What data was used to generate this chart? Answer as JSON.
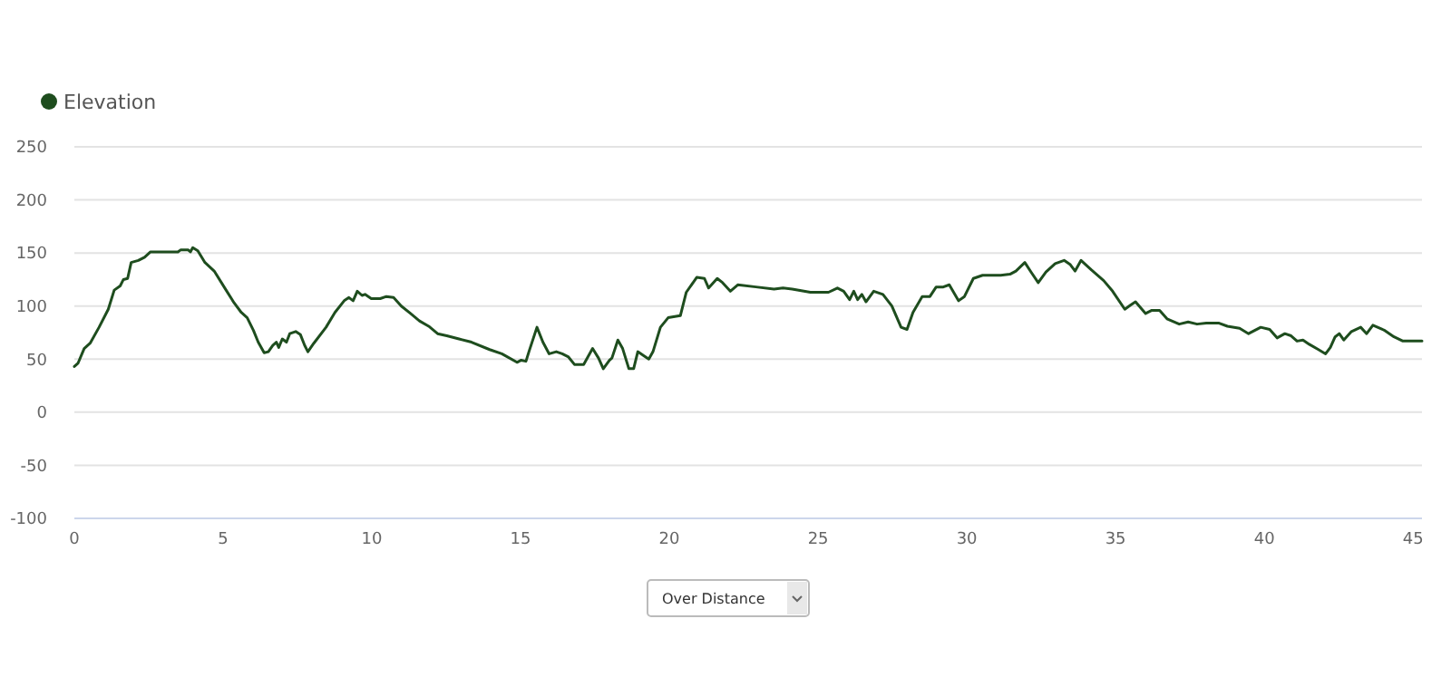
{
  "chart_data": {
    "type": "line",
    "xlim": [
      0,
      45.3
    ],
    "xticks": [
      0,
      5,
      10,
      15,
      20,
      25,
      30,
      35,
      40,
      45
    ],
    "ylim": [
      -100,
      250
    ],
    "yticks": [
      -100,
      -50,
      0,
      50,
      100,
      150,
      200,
      250
    ],
    "grid": "y",
    "legend": "top left",
    "marker": "none",
    "line_style": "solid",
    "annotations": [
      "Over Distance"
    ],
    "series": [
      {
        "name": "Elevation",
        "color": "#1e4d1e",
        "x": [
          0,
          0.12,
          0.33,
          0.53,
          0.83,
          1.14,
          1.34,
          1.54,
          1.65,
          1.79,
          1.91,
          2.15,
          2.36,
          2.56,
          2.76,
          3.48,
          3.58,
          3.82,
          3.9,
          3.98,
          4.15,
          4.39,
          4.7,
          5.1,
          5.37,
          5.61,
          5.81,
          6.02,
          6.18,
          6.38,
          6.52,
          6.67,
          6.79,
          6.87,
          6.99,
          7.13,
          7.24,
          7.44,
          7.6,
          7.74,
          7.85,
          8.05,
          8.46,
          8.76,
          9.07,
          9.23,
          9.37,
          9.51,
          9.67,
          9.77,
          9.98,
          10.28,
          10.49,
          10.73,
          10.99,
          11.3,
          11.6,
          11.91,
          12.21,
          12.52,
          12.93,
          13.35,
          13.96,
          14.37,
          14.88,
          15.02,
          15.18,
          15.28,
          15.55,
          15.75,
          15.96,
          16.2,
          16.4,
          16.61,
          16.81,
          17.12,
          17.42,
          17.62,
          17.78,
          17.99,
          18.07,
          18.27,
          18.43,
          18.64,
          18.8,
          18.94,
          19.15,
          19.31,
          19.45,
          19.7,
          19.96,
          20.37,
          20.57,
          20.92,
          21.18,
          21.32,
          21.61,
          21.79,
          22.05,
          22.3,
          22.91,
          23.52,
          23.82,
          24.13,
          24.74,
          25.35,
          25.65,
          25.86,
          26.06,
          26.2,
          26.33,
          26.47,
          26.61,
          26.87,
          27.18,
          27.48,
          27.79,
          27.99,
          28.19,
          28.5,
          28.76,
          28.97,
          29.21,
          29.41,
          29.72,
          29.92,
          30.22,
          30.53,
          31.14,
          31.45,
          31.65,
          31.95,
          32.16,
          32.4,
          32.66,
          32.97,
          33.27,
          33.48,
          33.64,
          33.84,
          34.19,
          34.6,
          34.9,
          35.31,
          35.51,
          35.67,
          36.01,
          36.22,
          36.48,
          36.73,
          37.14,
          37.44,
          37.74,
          38.05,
          38.46,
          38.76,
          39.17,
          39.47,
          39.88,
          40.18,
          40.43,
          40.69,
          40.9,
          41.1,
          41.3,
          41.51,
          41.82,
          42.06,
          42.22,
          42.38,
          42.52,
          42.67,
          42.93,
          43.24,
          43.44,
          43.65,
          44.05,
          44.36,
          44.66,
          45.3
        ],
        "values": [
          43,
          46,
          60,
          65,
          80,
          97,
          115,
          119,
          125,
          126,
          141,
          143,
          146,
          151,
          151,
          151,
          153,
          153,
          151,
          155,
          152,
          141,
          133,
          115,
          103,
          94,
          89,
          77,
          66,
          56,
          57,
          63,
          66,
          61,
          69,
          66,
          74,
          76,
          73,
          63,
          57,
          65,
          80,
          94,
          105,
          108,
          105,
          114,
          110,
          111,
          107,
          107,
          109,
          108,
          100,
          93,
          86,
          81,
          74,
          72,
          69,
          66,
          59,
          55,
          47,
          49,
          48,
          57,
          80,
          66,
          55,
          57,
          55,
          52,
          45,
          45,
          60,
          51,
          41,
          49,
          51,
          68,
          60,
          41,
          41,
          57,
          53,
          50,
          57,
          80,
          89,
          91,
          113,
          127,
          126,
          117,
          126,
          122,
          114,
          120,
          118,
          116,
          117,
          116,
          113,
          113,
          117,
          114,
          106,
          114,
          106,
          111,
          104,
          114,
          111,
          100,
          80,
          78,
          94,
          109,
          109,
          118,
          118,
          120,
          105,
          109,
          126,
          129,
          129,
          130,
          133,
          141,
          132,
          122,
          132,
          140,
          143,
          139,
          133,
          143,
          134,
          124,
          114,
          97,
          101,
          104,
          93,
          96,
          96,
          88,
          83,
          85,
          83,
          84,
          84,
          81,
          79,
          74,
          80,
          78,
          70,
          74,
          72,
          67,
          68,
          64,
          59,
          55,
          61,
          71,
          74,
          68,
          76,
          80,
          74,
          82,
          77,
          71,
          67,
          67
        ]
      }
    ]
  }
}
